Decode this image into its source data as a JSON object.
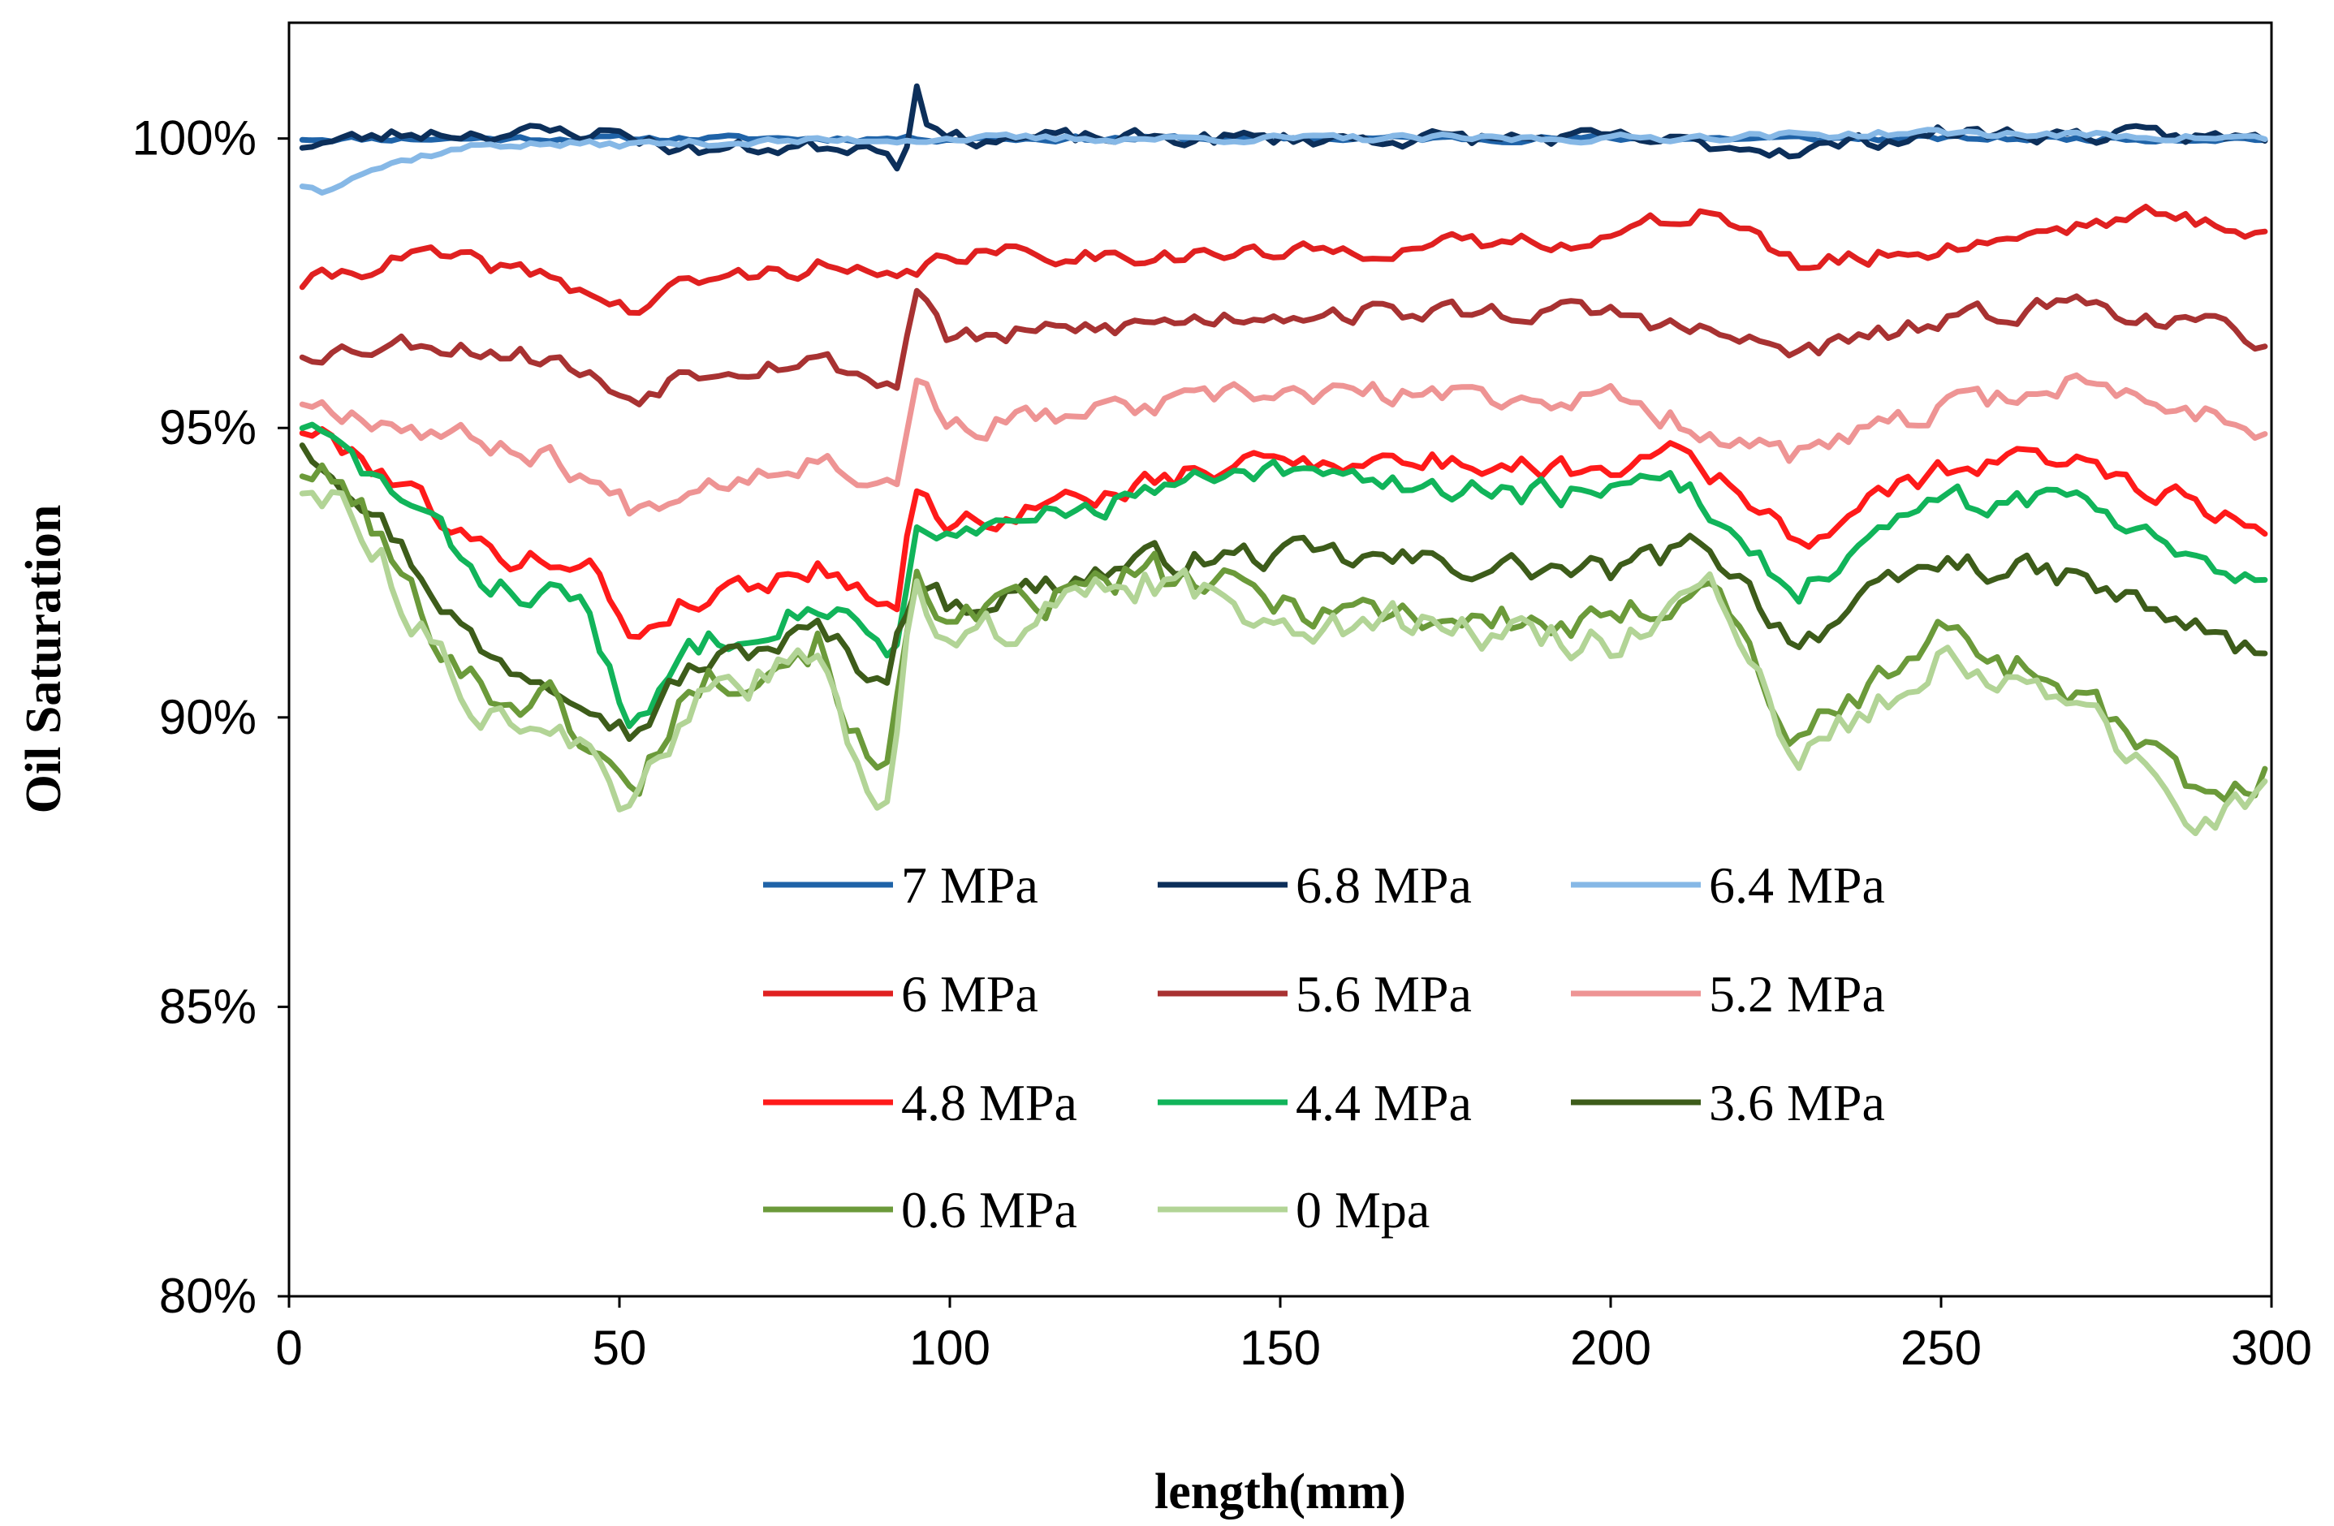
{
  "chart_data": {
    "type": "line",
    "title": "",
    "xlabel": "length(mm)",
    "ylabel": "Oil Saturation",
    "xlim": [
      0,
      300
    ],
    "ylim": [
      80,
      102
    ],
    "x_ticks": [
      0,
      50,
      100,
      150,
      200,
      250,
      300
    ],
    "x_tick_labels": [
      "0",
      "50",
      "100",
      "150",
      "200",
      "250",
      "300"
    ],
    "y_ticks": [
      80,
      85,
      90,
      95,
      100
    ],
    "y_tick_labels": [
      "80%",
      "85%",
      "90%",
      "95%",
      "100%"
    ],
    "legend_position": "lower-center inside",
    "series": [
      {
        "name": "7 MPa",
        "color": "#1f63a8",
        "seed": 11,
        "x": [
          2,
          50,
          95,
          150,
          200,
          250,
          300
        ],
        "y": [
          100.0,
          100.0,
          100.0,
          100.0,
          100.0,
          100.0,
          100.0
        ],
        "noise": 0.08
      },
      {
        "name": "6.8 MPa",
        "color": "#0c2f5a",
        "seed": 23,
        "x": [
          2,
          20,
          50,
          60,
          90,
          93,
          95,
          97,
          100,
          150,
          200,
          228,
          250,
          300
        ],
        "y": [
          99.9,
          100.1,
          100.1,
          99.8,
          99.9,
          99.5,
          101.0,
          100.2,
          100.0,
          100.0,
          100.0,
          99.8,
          100.1,
          100.0
        ],
        "noise": 0.22
      },
      {
        "name": "6.4 MPa",
        "color": "#86b8e6",
        "seed": 37,
        "x": [
          2,
          5,
          10,
          20,
          30,
          50,
          100,
          150,
          200,
          250,
          300
        ],
        "y": [
          99.2,
          99.1,
          99.4,
          99.7,
          99.9,
          99.9,
          100.0,
          100.0,
          100.0,
          100.1,
          100.0
        ],
        "noise": 0.1
      },
      {
        "name": "6 MPa",
        "color": "#e02020",
        "seed": 41,
        "x": [
          2,
          20,
          40,
          52,
          60,
          80,
          92,
          100,
          150,
          200,
          215,
          228,
          250,
          270,
          280,
          300
        ],
        "y": [
          97.5,
          98.0,
          97.6,
          97.0,
          97.5,
          97.8,
          97.5,
          98.0,
          98.0,
          98.3,
          98.8,
          97.8,
          98.1,
          98.5,
          98.7,
          98.4
        ],
        "noise": 0.25
      },
      {
        "name": "5.6 MPa",
        "color": "#a83232",
        "seed": 53,
        "x": [
          2,
          20,
          40,
          52,
          60,
          80,
          92,
          95,
          100,
          150,
          200,
          228,
          250,
          270,
          300
        ],
        "y": [
          96.3,
          96.5,
          96.2,
          95.5,
          96.0,
          96.2,
          95.7,
          97.5,
          96.5,
          97.0,
          97.0,
          96.3,
          96.8,
          97.2,
          96.5
        ],
        "noise": 0.3
      },
      {
        "name": "5.2 MPa",
        "color": "#ee9494",
        "seed": 67,
        "x": [
          2,
          20,
          40,
          52,
          60,
          80,
          92,
          95,
          100,
          150,
          200,
          228,
          250,
          270,
          300
        ],
        "y": [
          95.5,
          95.0,
          94.5,
          93.6,
          94.0,
          94.5,
          94.0,
          96.0,
          95.0,
          95.6,
          95.5,
          94.5,
          95.3,
          95.8,
          95.0
        ],
        "noise": 0.35
      },
      {
        "name": "4.8 MPa",
        "color": "#ff1a1a",
        "seed": 79,
        "x": [
          2,
          10,
          20,
          30,
          45,
          52,
          60,
          80,
          92,
          95,
          100,
          150,
          200,
          210,
          228,
          250,
          270,
          300
        ],
        "y": [
          95.0,
          94.6,
          93.8,
          92.8,
          92.7,
          91.4,
          92.0,
          92.6,
          92.0,
          94.0,
          93.3,
          94.5,
          94.3,
          94.8,
          93.0,
          94.3,
          94.5,
          93.2
        ],
        "noise": 0.35
      },
      {
        "name": "4.4 MPa",
        "color": "#11b45a",
        "seed": 83,
        "x": [
          2,
          10,
          20,
          30,
          45,
          52,
          60,
          80,
          92,
          95,
          100,
          130,
          150,
          200,
          210,
          228,
          250,
          270,
          300
        ],
        "y": [
          95.1,
          94.4,
          93.5,
          92.3,
          92.0,
          89.6,
          91.2,
          92.0,
          91.2,
          93.5,
          93.0,
          93.9,
          94.2,
          93.8,
          94.1,
          92.2,
          93.7,
          93.8,
          92.3
        ],
        "noise": 0.4
      },
      {
        "name": "3.6 MPa",
        "color": "#3d5c1a",
        "seed": 97,
        "x": [
          2,
          10,
          20,
          30,
          45,
          52,
          60,
          80,
          90,
          95,
          100,
          130,
          150,
          200,
          215,
          228,
          250,
          270,
          300
        ],
        "y": [
          94.8,
          94.0,
          92.5,
          91.0,
          90.5,
          89.7,
          90.8,
          91.5,
          90.6,
          92.5,
          91.9,
          92.7,
          92.8,
          92.5,
          93.0,
          91.3,
          92.7,
          92.4,
          91.0
        ],
        "noise": 0.4
      },
      {
        "name": "0.6 MPa",
        "color": "#6b9a3a",
        "seed": 101,
        "x": [
          2,
          10,
          20,
          30,
          40,
          52,
          60,
          80,
          90,
          95,
          100,
          130,
          150,
          200,
          215,
          228,
          250,
          270,
          290,
          300
        ],
        "y": [
          94.3,
          93.8,
          91.8,
          90.4,
          90.3,
          88.6,
          90.5,
          91.3,
          88.6,
          92.8,
          91.5,
          92.5,
          92.0,
          91.5,
          92.5,
          89.5,
          91.5,
          90.5,
          88.5,
          89.0
        ],
        "noise": 0.55
      },
      {
        "name": "0 Mpa",
        "color": "#b2d496",
        "seed": 113,
        "x": [
          2,
          10,
          20,
          30,
          40,
          52,
          60,
          80,
          90,
          95,
          100,
          130,
          150,
          200,
          215,
          228,
          250,
          270,
          290,
          300
        ],
        "y": [
          94.0,
          93.6,
          91.5,
          90.1,
          90.0,
          88.2,
          90.2,
          91.0,
          88.2,
          92.5,
          91.3,
          92.3,
          91.8,
          91.3,
          92.3,
          89.1,
          91.2,
          90.2,
          88.1,
          88.7
        ],
        "noise": 0.55
      }
    ]
  }
}
